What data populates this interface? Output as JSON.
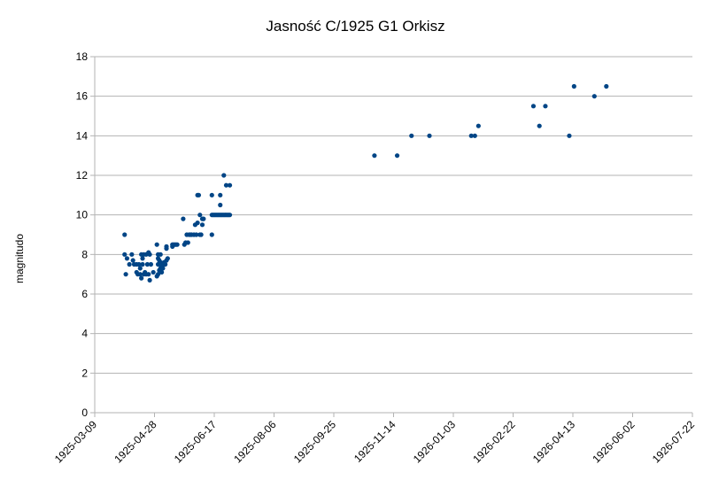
{
  "chart_data": {
    "type": "scatter",
    "title": "Jasność C/1925 G1 Orkisz",
    "xlabel": "",
    "ylabel": "magnitudo",
    "grid": "horizontal",
    "legend": "none",
    "marker_color": "#004586",
    "xlim": [
      "1925-03-09",
      "1926-07-22"
    ],
    "ylim": [
      0,
      18
    ],
    "x_ticks": [
      "1925-03-09",
      "1925-04-28",
      "1925-06-17",
      "1925-08-06",
      "1925-09-25",
      "1925-11-14",
      "1926-01-03",
      "1926-02-22",
      "1926-04-13",
      "1926-06-02",
      "1926-07-22"
    ],
    "y_ticks": [
      0,
      2,
      4,
      6,
      8,
      10,
      12,
      14,
      16,
      18
    ],
    "points": [
      {
        "x": "1925-04-03",
        "y": 9.0
      },
      {
        "x": "1925-04-03",
        "y": 8.0
      },
      {
        "x": "1925-04-04",
        "y": 7.0
      },
      {
        "x": "1925-04-05",
        "y": 7.8
      },
      {
        "x": "1925-04-07",
        "y": 7.5
      },
      {
        "x": "1925-04-09",
        "y": 8.0
      },
      {
        "x": "1925-04-10",
        "y": 7.7
      },
      {
        "x": "1925-04-11",
        "y": 7.5
      },
      {
        "x": "1925-04-13",
        "y": 7.5
      },
      {
        "x": "1925-04-13",
        "y": 7.1
      },
      {
        "x": "1925-04-14",
        "y": 7.0
      },
      {
        "x": "1925-04-15",
        "y": 7.5
      },
      {
        "x": "1925-04-16",
        "y": 7.3
      },
      {
        "x": "1925-04-16",
        "y": 7.0
      },
      {
        "x": "1925-04-17",
        "y": 8.0
      },
      {
        "x": "1925-04-17",
        "y": 6.8
      },
      {
        "x": "1925-04-18",
        "y": 7.8
      },
      {
        "x": "1925-04-18",
        "y": 7.5
      },
      {
        "x": "1925-04-19",
        "y": 8.0
      },
      {
        "x": "1925-04-19",
        "y": 7.0
      },
      {
        "x": "1925-04-20",
        "y": 7.1
      },
      {
        "x": "1925-04-21",
        "y": 7.0
      },
      {
        "x": "1925-04-21",
        "y": 8.0
      },
      {
        "x": "1925-04-22",
        "y": 7.5
      },
      {
        "x": "1925-04-23",
        "y": 8.1
      },
      {
        "x": "1925-04-23",
        "y": 7.0
      },
      {
        "x": "1925-04-24",
        "y": 6.7
      },
      {
        "x": "1925-04-24",
        "y": 8.0
      },
      {
        "x": "1925-04-25",
        "y": 7.5
      },
      {
        "x": "1925-04-27",
        "y": 7.1
      },
      {
        "x": "1925-04-30",
        "y": 8.5
      },
      {
        "x": "1925-04-30",
        "y": 6.9
      },
      {
        "x": "1925-05-01",
        "y": 7.0
      },
      {
        "x": "1925-05-01",
        "y": 7.5
      },
      {
        "x": "1925-05-01",
        "y": 7.8
      },
      {
        "x": "1925-05-01",
        "y": 8.0
      },
      {
        "x": "1925-05-02",
        "y": 7.2
      },
      {
        "x": "1925-05-02",
        "y": 7.7
      },
      {
        "x": "1925-05-03",
        "y": 7.3
      },
      {
        "x": "1925-05-03",
        "y": 7.6
      },
      {
        "x": "1925-05-03",
        "y": 8.0
      },
      {
        "x": "1925-05-04",
        "y": 7.4
      },
      {
        "x": "1925-05-04",
        "y": 7.1
      },
      {
        "x": "1925-05-05",
        "y": 7.5
      },
      {
        "x": "1925-05-05",
        "y": 7.3
      },
      {
        "x": "1925-05-06",
        "y": 7.5
      },
      {
        "x": "1925-05-06",
        "y": 7.6
      },
      {
        "x": "1925-05-07",
        "y": 7.5
      },
      {
        "x": "1925-05-08",
        "y": 7.7
      },
      {
        "x": "1925-05-08",
        "y": 8.3
      },
      {
        "x": "1925-05-08",
        "y": 8.4
      },
      {
        "x": "1925-05-09",
        "y": 7.8
      },
      {
        "x": "1925-05-13",
        "y": 8.4
      },
      {
        "x": "1925-05-13",
        "y": 8.5
      },
      {
        "x": "1925-05-14",
        "y": 8.5
      },
      {
        "x": "1925-05-15",
        "y": 8.5
      },
      {
        "x": "1925-05-16",
        "y": 8.5
      },
      {
        "x": "1925-05-17",
        "y": 8.5
      },
      {
        "x": "1925-05-22",
        "y": 9.8
      },
      {
        "x": "1925-05-23",
        "y": 8.5
      },
      {
        "x": "1925-05-24",
        "y": 8.6
      },
      {
        "x": "1925-05-25",
        "y": 9.0
      },
      {
        "x": "1925-05-26",
        "y": 8.6
      },
      {
        "x": "1925-05-27",
        "y": 9.0
      },
      {
        "x": "1925-05-28",
        "y": 9.0
      },
      {
        "x": "1925-05-29",
        "y": 9.0
      },
      {
        "x": "1925-05-31",
        "y": 9.0
      },
      {
        "x": "1925-06-01",
        "y": 9.5
      },
      {
        "x": "1925-06-02",
        "y": 9.0
      },
      {
        "x": "1925-06-03",
        "y": 9.6
      },
      {
        "x": "1925-06-03",
        "y": 11.0
      },
      {
        "x": "1925-06-04",
        "y": 11.0
      },
      {
        "x": "1925-06-05",
        "y": 9.0
      },
      {
        "x": "1925-06-05",
        "y": 10.0
      },
      {
        "x": "1925-06-06",
        "y": 9.0
      },
      {
        "x": "1925-06-07",
        "y": 9.5
      },
      {
        "x": "1925-06-07",
        "y": 9.8
      },
      {
        "x": "1925-06-08",
        "y": 9.8
      },
      {
        "x": "1925-06-15",
        "y": 9.0
      },
      {
        "x": "1925-06-15",
        "y": 10.0
      },
      {
        "x": "1925-06-15",
        "y": 11.0
      },
      {
        "x": "1925-06-16",
        "y": 10.0
      },
      {
        "x": "1925-06-17",
        "y": 10.0
      },
      {
        "x": "1925-06-18",
        "y": 10.0
      },
      {
        "x": "1925-06-19",
        "y": 10.0
      },
      {
        "x": "1925-06-20",
        "y": 10.0
      },
      {
        "x": "1925-06-21",
        "y": 10.0
      },
      {
        "x": "1925-06-22",
        "y": 10.0
      },
      {
        "x": "1925-06-22",
        "y": 10.5
      },
      {
        "x": "1925-06-22",
        "y": 11.0
      },
      {
        "x": "1925-06-23",
        "y": 10.0
      },
      {
        "x": "1925-06-24",
        "y": 10.0
      },
      {
        "x": "1925-06-25",
        "y": 10.0
      },
      {
        "x": "1925-06-25",
        "y": 12.0
      },
      {
        "x": "1925-06-26",
        "y": 10.0
      },
      {
        "x": "1925-06-27",
        "y": 10.0
      },
      {
        "x": "1925-06-27",
        "y": 11.5
      },
      {
        "x": "1925-06-28",
        "y": 10.0
      },
      {
        "x": "1925-06-29",
        "y": 10.0
      },
      {
        "x": "1925-06-30",
        "y": 10.0
      },
      {
        "x": "1925-06-30",
        "y": 11.5
      },
      {
        "x": "1925-10-29",
        "y": 13.0
      },
      {
        "x": "1925-11-17",
        "y": 13.0
      },
      {
        "x": "1925-11-29",
        "y": 14.0
      },
      {
        "x": "1925-12-14",
        "y": 14.0
      },
      {
        "x": "1926-01-18",
        "y": 14.0
      },
      {
        "x": "1926-01-21",
        "y": 14.0
      },
      {
        "x": "1926-01-24",
        "y": 14.5
      },
      {
        "x": "1926-03-11",
        "y": 15.5
      },
      {
        "x": "1926-03-16",
        "y": 14.5
      },
      {
        "x": "1926-03-21",
        "y": 15.5
      },
      {
        "x": "1926-04-10",
        "y": 14.0
      },
      {
        "x": "1926-04-14",
        "y": 16.5
      },
      {
        "x": "1926-05-01",
        "y": 16.0
      },
      {
        "x": "1926-05-11",
        "y": 16.5
      }
    ]
  }
}
